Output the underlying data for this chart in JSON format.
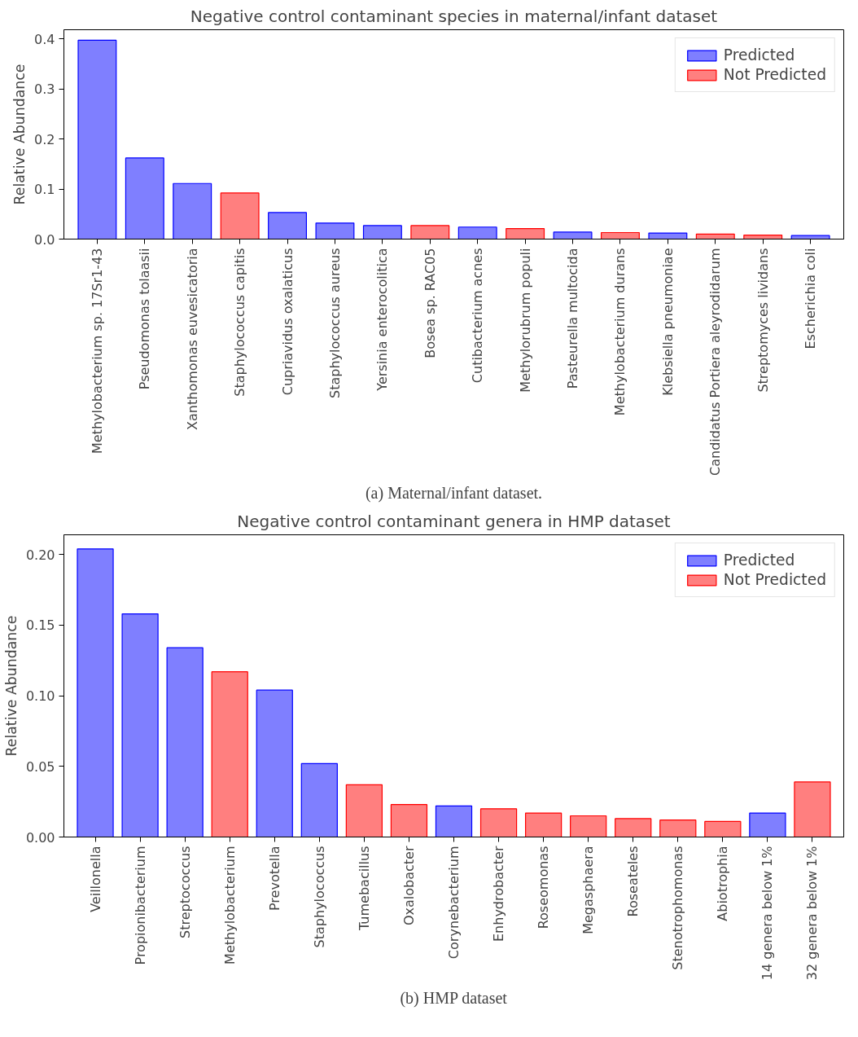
{
  "chart_data": [
    {
      "type": "bar",
      "title": "Negative control contaminant species in maternal/infant dataset",
      "ylabel": "Relative Abundance",
      "categories": [
        "Methylobacterium sp. 17Sr1-43",
        "Pseudomonas tolaasii",
        "Xanthomonas euvesicatoria",
        "Staphylococcus capitis",
        "Cupriavidus oxalaticus",
        "Staphylococcus aureus",
        "Yersinia enterocolitica",
        "Bosea sp. RAC05",
        "Cutibacterium acnes",
        "Methylorubrum populi",
        "Pasteurella multocida",
        "Methylobacterium durans",
        "Klebsiella pneumoniae",
        "Candidatus Portiera aleyrodidarum",
        "Streptomyces lividans",
        "Escherichia coli"
      ],
      "series": [
        {
          "name": "Predicted",
          "color": "#7f7fff",
          "values": [
            0.397,
            0.162,
            0.111,
            null,
            0.053,
            0.032,
            0.027,
            null,
            0.024,
            null,
            0.014,
            null,
            0.012,
            null,
            null,
            0.007
          ]
        },
        {
          "name": "Not Predicted",
          "color": "#ff7f7f",
          "values": [
            null,
            null,
            null,
            0.092,
            null,
            null,
            null,
            0.027,
            null,
            0.021,
            null,
            0.013,
            null,
            0.01,
            0.008,
            null
          ]
        }
      ],
      "ylim": [
        0,
        0.418
      ],
      "yticks": [
        {
          "value": 0,
          "label": "0.0"
        },
        {
          "value": 0.1,
          "label": "0.1"
        },
        {
          "value": 0.2,
          "label": "0.2"
        },
        {
          "value": 0.3,
          "label": "0.3"
        },
        {
          "value": 0.4,
          "label": "0.4"
        }
      ],
      "legend": "top right",
      "grid": false,
      "annotations": [
        "(a) Maternal/infant dataset."
      ]
    },
    {
      "type": "bar",
      "title": "Negative control contaminant genera in HMP dataset",
      "ylabel": "Relative Abundance",
      "categories": [
        "Veillonella",
        "Propionibacterium",
        "Streptococcus",
        "Methylobacterium",
        "Prevotella",
        "Staphylococcus",
        "Tumebacillus",
        "Oxalobacter",
        "Corynebacterium",
        "Enhydrobacter",
        "Roseomonas",
        "Megasphaera",
        "Roseateles",
        "Stenotrophomonas",
        "Abiotrophia",
        "14 genera below 1%",
        "32 genera below 1%"
      ],
      "series": [
        {
          "name": "Predicted",
          "color": "#7f7fff",
          "values": [
            0.204,
            0.158,
            0.134,
            null,
            0.104,
            0.052,
            null,
            null,
            0.022,
            null,
            null,
            null,
            null,
            null,
            null,
            0.017,
            null
          ]
        },
        {
          "name": "Not Predicted",
          "color": "#ff7f7f",
          "values": [
            null,
            null,
            null,
            0.117,
            null,
            null,
            0.037,
            0.023,
            null,
            0.02,
            0.017,
            0.015,
            0.013,
            0.012,
            0.011,
            null,
            0.039
          ]
        }
      ],
      "ylim": [
        0,
        0.214
      ],
      "yticks": [
        {
          "value": 0,
          "label": "0.00"
        },
        {
          "value": 0.05,
          "label": "0.05"
        },
        {
          "value": 0.1,
          "label": "0.10"
        },
        {
          "value": 0.15,
          "label": "0.15"
        },
        {
          "value": 0.2,
          "label": "0.20"
        }
      ],
      "legend": "top right",
      "grid": false,
      "annotations": [
        "(b) HMP dataset"
      ]
    }
  ]
}
